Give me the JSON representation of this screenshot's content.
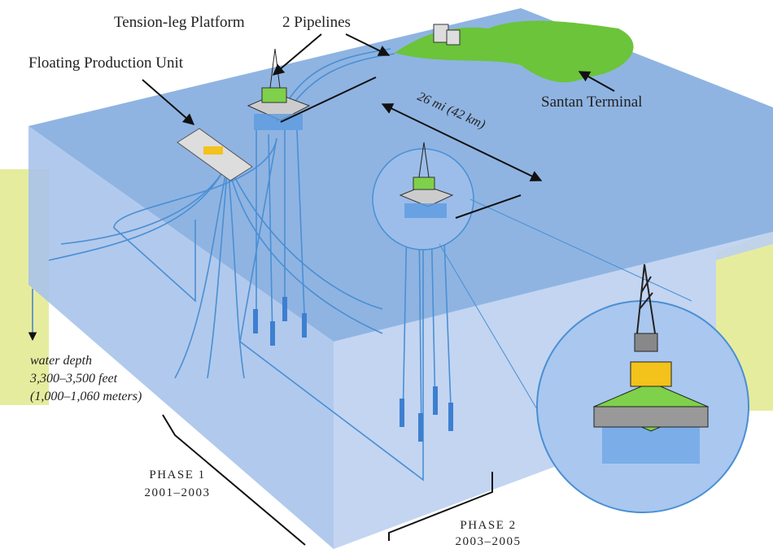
{
  "labels": {
    "tlp": "Tension-leg Platform",
    "pipelines": "2 Pipelines",
    "fpu": "Floating Production Unit",
    "terminal": "Santan Terminal",
    "distance": "26 mi (42 km)"
  },
  "depth": {
    "lines": [
      "water depth",
      "3,300–3,500 feet",
      "(1,000–1,060 meters)"
    ]
  },
  "phases": [
    {
      "label": "PHASE 1",
      "years": "2001–2003"
    },
    {
      "label": "PHASE 2",
      "years": "2003–2005"
    }
  ]
}
